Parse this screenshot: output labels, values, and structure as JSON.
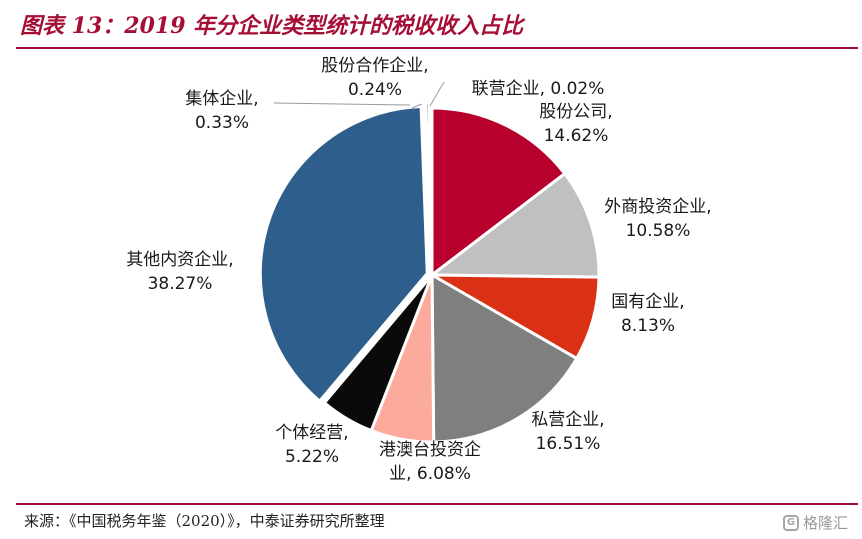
{
  "title": "图表 13：2019 年分企业类型统计的税收收入占比",
  "source": "来源：《中国税务年鉴（2020）》，中泰证券研究所整理",
  "watermark": "格隆汇",
  "chart_data": {
    "type": "pie",
    "title": "",
    "slices": [
      {
        "name": "股份公司",
        "value": 14.62,
        "value_label": "14.62%",
        "color": "#b8002d"
      },
      {
        "name": "外商投资企业",
        "value": 10.58,
        "value_label": "10.58%",
        "color": "#c0c0c0"
      },
      {
        "name": "国有企业",
        "value": 8.13,
        "value_label": "8.13%",
        "color": "#da3116"
      },
      {
        "name": "私营企业",
        "value": 16.51,
        "value_label": "16.51%",
        "color": "#7f7f7f"
      },
      {
        "name": "港澳台投资企业",
        "value": 6.08,
        "value_label": "6.08%",
        "color": "#fbaa9c"
      },
      {
        "name": "个体经营",
        "value": 5.22,
        "value_label": "5.22%",
        "color": "#0a0a0a"
      },
      {
        "name": "其他内资企业",
        "value": 38.27,
        "value_label": "38.27%",
        "color": "#2e5f8c"
      },
      {
        "name": "集体企业",
        "value": 0.33,
        "value_label": "0.33%",
        "color": "#1f4e79"
      },
      {
        "name": "股份合作企业",
        "value": 0.24,
        "value_label": "0.24%",
        "color": "#b7b7b7"
      },
      {
        "name": "联营企业",
        "value": 0.02,
        "value_label": "0.02%",
        "color": "#c00000"
      }
    ]
  }
}
